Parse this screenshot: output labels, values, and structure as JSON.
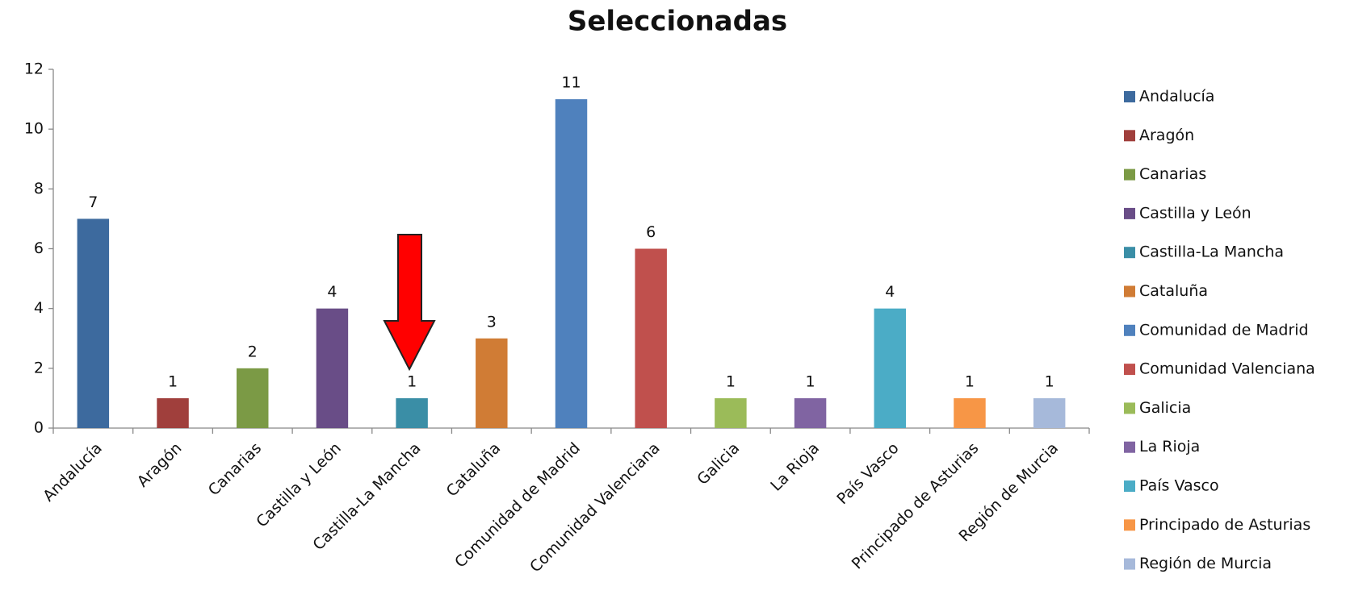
{
  "chart_data": {
    "type": "bar",
    "title": "Seleccionadas",
    "categories": [
      "Andalucía",
      "Aragón",
      "Canarias",
      "Castilla y León",
      "Castilla-La Mancha",
      "Cataluña",
      "Comunidad de Madrid",
      "Comunidad Valenciana",
      "Galicia",
      "La Rioja",
      "País Vasco",
      "Principado de Asturias",
      "Región de Murcia"
    ],
    "values": [
      7,
      1,
      2,
      4,
      1,
      3,
      11,
      6,
      1,
      1,
      4,
      1,
      1
    ],
    "colors": [
      "#3d6a9e",
      "#a03f3c",
      "#7b9a45",
      "#694d87",
      "#3a8ea6",
      "#d07c35",
      "#4f81bd",
      "#c0504d",
      "#9bbb59",
      "#8064a2",
      "#4bacc6",
      "#f79646",
      "#a6b9da"
    ],
    "ylim": [
      0,
      12
    ],
    "yticks": [
      0,
      2,
      4,
      6,
      8,
      10,
      12
    ],
    "grid": false,
    "legend": "right"
  }
}
